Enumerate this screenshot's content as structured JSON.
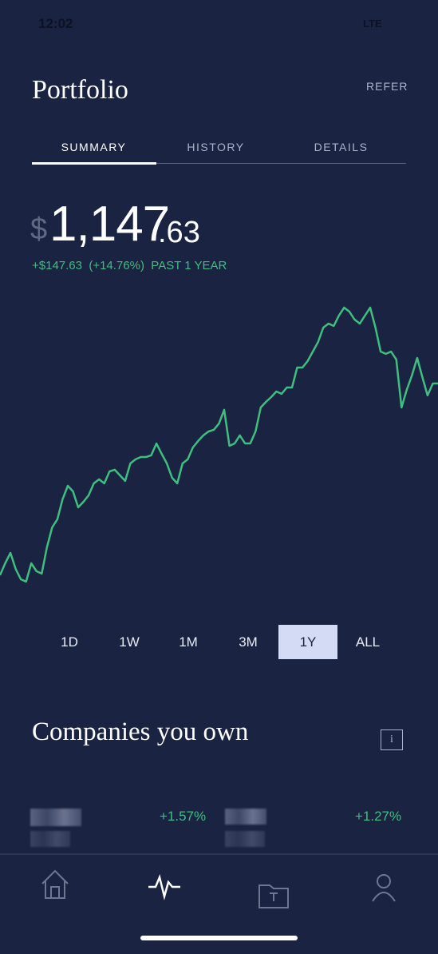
{
  "status_bar": {
    "time": "12:02",
    "network": "LTE"
  },
  "header": {
    "title": "Portfolio",
    "action": "REFER"
  },
  "tabs": [
    "SUMMARY",
    "HISTORY",
    "DETAILS"
  ],
  "balance": {
    "currency": "$",
    "whole": "1,147",
    "cents": ".63",
    "change": "+$147.63",
    "change_pct": "(+14.76%)",
    "period": "PAST 1 YEAR"
  },
  "chart_data": {
    "type": "line",
    "color": "#3fbf7f",
    "values": [
      990.2,
      1000,
      1008.5,
      995.4,
      986.9,
      984.9,
      1000,
      993.4,
      991.5,
      1013.1,
      1029.5,
      1036.1,
      1052.5,
      1063.6,
      1059,
      1045.9,
      1050.5,
      1055.8,
      1065.6,
      1068.9,
      1065.6,
      1075.4,
      1076.8,
      1072.2,
      1067.6,
      1082,
      1085.3,
      1087.2,
      1087.2,
      1088.6,
      1098.4,
      1089.9,
      1082,
      1070.2,
      1065.6,
      1082,
      1085.3,
      1095.1,
      1100.4,
      1105,
      1108.2,
      1109.6,
      1114.8,
      1126,
      1096.4,
      1098.4,
      1105,
      1098.4,
      1098.4,
      1108.2,
      1127.9,
      1132.5,
      1136.4,
      1141,
      1139.1,
      1144.3,
      1144.3,
      1160.7,
      1160.7,
      1166,
      1173.8,
      1181.7,
      1193.5,
      1196.8,
      1194.8,
      1203.4,
      1209.9,
      1206.6,
      1200.1,
      1196.8,
      1203.4,
      1209.9,
      1193.5,
      1173.8,
      1171.9,
      1173.8,
      1167.3,
      1127.9,
      1142.4,
      1154.2,
      1168.6,
      1152.8,
      1137.8,
      1147.6,
      1147.63
    ]
  },
  "ranges": [
    "1D",
    "1W",
    "1M",
    "3M",
    "1Y",
    "ALL"
  ],
  "companies": {
    "title": "Companies you own",
    "info": "i",
    "items": [
      "+1.57%",
      "+1.27%"
    ]
  }
}
